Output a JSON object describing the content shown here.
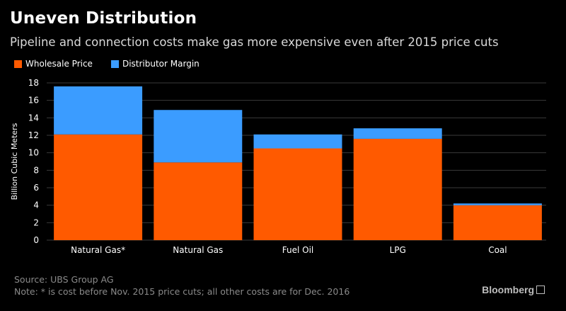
{
  "header": {
    "title": "Uneven Distribution",
    "subtitle": "Pipeline and connection costs make gas more expensive even after 2015 price cuts"
  },
  "colors": {
    "wholesale": "#ff5a00",
    "margin": "#3b9cff",
    "grid": "#3a3a3a",
    "axis_text": "#ffffff"
  },
  "chart_data": {
    "type": "bar",
    "stacked": true,
    "categories": [
      "Natural Gas*",
      "Natural Gas",
      "Fuel Oil",
      "LPG",
      "Coal"
    ],
    "series": [
      {
        "name": "Wholesale Price",
        "values": [
          12.1,
          8.9,
          10.5,
          11.6,
          4.0
        ]
      },
      {
        "name": "Distributor Margin",
        "values": [
          5.5,
          6.0,
          1.6,
          1.2,
          0.2
        ]
      }
    ],
    "ylabel": "Billion Cubic Meters",
    "ylim": [
      0,
      18
    ],
    "yticks": [
      0,
      2,
      4,
      6,
      8,
      10,
      12,
      14,
      16,
      18
    ],
    "grid": true,
    "legend_position": "top-left"
  },
  "footer": {
    "source": "Source: UBS Group AG",
    "note": "Note: * is cost before Nov. 2015 price cuts; all other costs are for Dec. 2016",
    "brand": "Bloomberg",
    "brand_icon": "bloomberg-terminal-icon"
  }
}
